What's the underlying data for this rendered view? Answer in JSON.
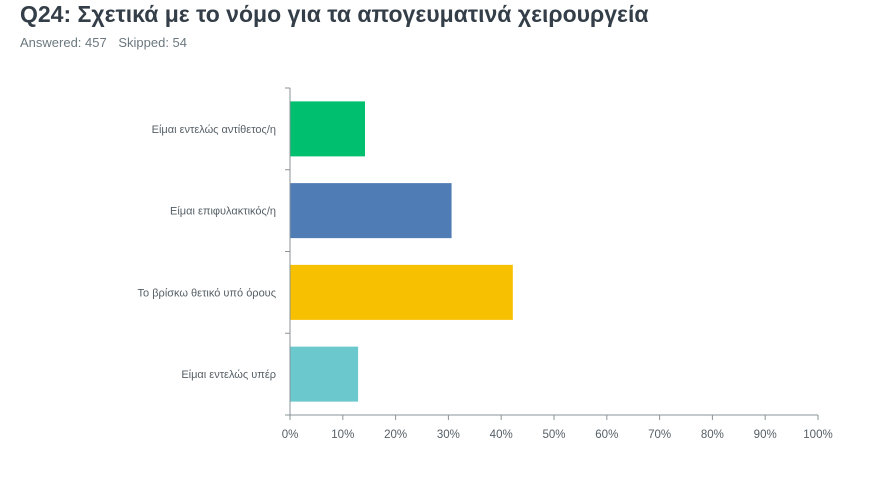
{
  "header": {
    "title": "Q24: Σχετικά με το νόμο για τα απογευματινά χειρουργεία",
    "answered_label": "Answered: 457",
    "skipped_label": "Skipped: 54"
  },
  "chart_data": {
    "type": "bar",
    "orientation": "horizontal",
    "categories": [
      "Είμαι εντελώς αντίθετος/η",
      "Είμαι επιφυλακτικός/η",
      "Το βρίσκω θετικό υπό όρους",
      "Είμαι εντελώς υπέρ"
    ],
    "values": [
      14.2,
      30.6,
      42.2,
      12.9
    ],
    "colors": [
      "#00bf6f",
      "#507cb6",
      "#f7c000",
      "#6bc8cd"
    ],
    "xlim": [
      0,
      100
    ],
    "xticks": [
      "0%",
      "10%",
      "20%",
      "30%",
      "40%",
      "50%",
      "60%",
      "70%",
      "80%",
      "90%",
      "100%"
    ],
    "grid": false,
    "legend": "none"
  }
}
